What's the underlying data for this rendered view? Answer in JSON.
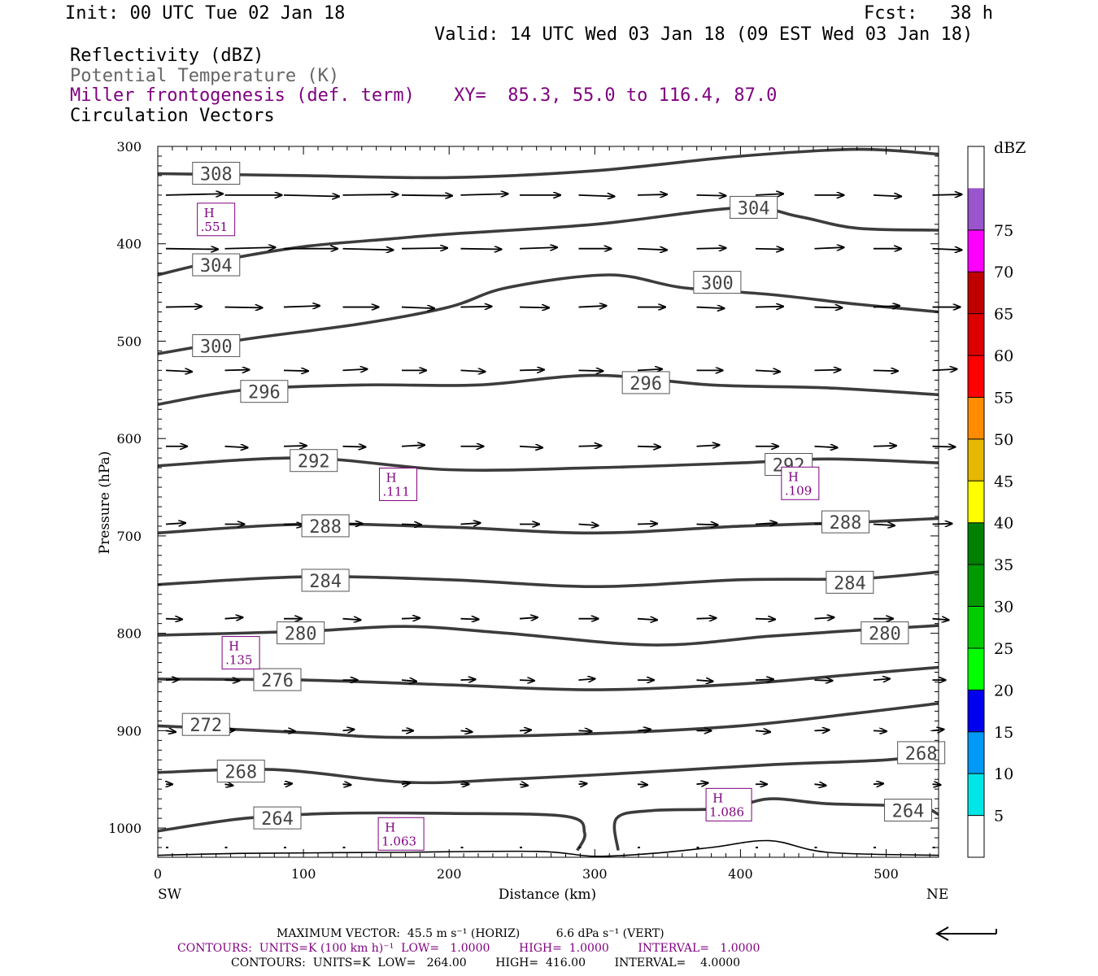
{
  "header": {
    "init": "Init: 00 UTC Tue 02 Jan 18",
    "fcst": "Fcst:   38 h",
    "valid": "Valid: 14 UTC Wed 03 Jan 18 (09 EST Wed 03 Jan 18)",
    "field1": "Reflectivity (dBZ)",
    "field2": "Potential Temperature (K)",
    "field3": "Miller frontogenesis (def. term)",
    "xy": "XY=  85.3, 55.0 to 116.4, 87.0",
    "field4": "Circulation Vectors"
  },
  "footer": {
    "line1": "MAXIMUM VECTOR:  45.5 m s⁻¹ (HORIZ)          6.6 dPa s⁻¹ (VERT)",
    "line2": "CONTOURS:  UNITS=K (100 km h)⁻¹  LOW=   1.0000        HIGH=  1.0000        INTERVAL=   1.0000",
    "line3": "CONTOURS:  UNITS=K  LOW=   264.00        HIGH=  416.00        INTERVAL=    4.0000"
  },
  "colors": {
    "purple": "#7f007f",
    "contour": "#3c3c3c"
  },
  "chart_data": {
    "type": "line",
    "xlabel": "Distance (km)",
    "ylabel": "Pressure (hPa)",
    "xlim": [
      0,
      536
    ],
    "ylim": [
      1030,
      300
    ],
    "y_scale": "linear",
    "x_ticks": [
      "0",
      "100",
      "200",
      "300",
      "400",
      "500"
    ],
    "y_ticks": [
      "300",
      "400",
      "500",
      "600",
      "700",
      "800",
      "900",
      "1000"
    ],
    "x_end_labels": {
      "left": "SW",
      "right": "NE"
    },
    "colorbar": {
      "unit": "dBZ",
      "labels": [
        "5",
        "10",
        "15",
        "20",
        "25",
        "30",
        "35",
        "40",
        "45",
        "50",
        "55",
        "60",
        "65",
        "70",
        "75"
      ],
      "colors": [
        "#ffffff",
        "#00e5e5",
        "#0099f5",
        "#0000f0",
        "#00ff00",
        "#00cc00",
        "#009900",
        "#008000",
        "#ffff00",
        "#e6b800",
        "#ff8c00",
        "#ff0000",
        "#dd0000",
        "#c00000",
        "#ff00ff",
        "#9955cc",
        "#ffffff"
      ]
    },
    "theta_contours": [
      {
        "value": 308,
        "label": "308",
        "label_x": 25,
        "label_p": 328,
        "x": [
          0,
          100,
          200,
          300,
          400,
          480,
          536
        ],
        "p": [
          328,
          330,
          332,
          325,
          310,
          303,
          308
        ]
      },
      {
        "value": 304,
        "label": "304",
        "label_x": 394,
        "label_p": 363,
        "x": [
          0,
          40,
          100,
          160,
          200,
          300,
          400,
          440,
          480,
          536
        ],
        "p": [
          432,
          418,
          403,
          395,
          390,
          380,
          363,
          372,
          384,
          386
        ]
      },
      {
        "value": 304,
        "label": "304",
        "label_x": 25,
        "label_p": 422,
        "x": [],
        "p": []
      },
      {
        "value": 300,
        "label": "300",
        "label_x": 369,
        "label_p": 440,
        "x": [
          0,
          60,
          140,
          200,
          240,
          310,
          360,
          420,
          480,
          536
        ],
        "p": [
          513,
          498,
          482,
          465,
          445,
          432,
          445,
          452,
          462,
          470
        ]
      },
      {
        "value": 300,
        "label": "300",
        "label_x": 25,
        "label_p": 505,
        "x": [],
        "p": []
      },
      {
        "value": 296,
        "label": "296",
        "label_x": 320,
        "label_p": 543,
        "x": [
          0,
          60,
          140,
          220,
          300,
          380,
          460,
          536
        ],
        "p": [
          565,
          550,
          545,
          545,
          535,
          545,
          548,
          555
        ]
      },
      {
        "value": 296,
        "label": "296",
        "label_x": 58,
        "label_p": 552,
        "x": [],
        "p": []
      },
      {
        "value": 292,
        "label": "292",
        "label_x": 92,
        "label_p": 623,
        "x": [
          0,
          100,
          200,
          300,
          400,
          460,
          536
        ],
        "p": [
          628,
          620,
          632,
          630,
          625,
          621,
          625
        ]
      },
      {
        "value": 292,
        "label": "292",
        "label_x": 418,
        "label_p": 627,
        "x": [],
        "p": []
      },
      {
        "value": 288,
        "label": "288",
        "label_x": 100,
        "label_p": 690,
        "x": [
          0,
          100,
          200,
          300,
          400,
          480,
          536
        ],
        "p": [
          697,
          688,
          691,
          697,
          690,
          686,
          682
        ]
      },
      {
        "value": 288,
        "label": "288",
        "label_x": 457,
        "label_p": 686,
        "x": [],
        "p": []
      },
      {
        "value": 284,
        "label": "284",
        "label_x": 100,
        "label_p": 746,
        "x": [
          0,
          100,
          200,
          300,
          400,
          480,
          536
        ],
        "p": [
          750,
          742,
          745,
          752,
          745,
          744,
          737
        ]
      },
      {
        "value": 284,
        "label": "284",
        "label_x": 460,
        "label_p": 748,
        "x": [],
        "p": []
      },
      {
        "value": 280,
        "label": "280",
        "label_x": 83,
        "label_p": 800,
        "x": [
          0,
          100,
          170,
          240,
          340,
          420,
          480,
          536
        ],
        "p": [
          802,
          798,
          793,
          800,
          812,
          803,
          797,
          792
        ]
      },
      {
        "value": 280,
        "label": "280",
        "label_x": 484,
        "label_p": 800,
        "x": [],
        "p": []
      },
      {
        "value": 276,
        "label": "276",
        "label_x": 67,
        "label_p": 848,
        "x": [
          0,
          100,
          200,
          300,
          400,
          480,
          536
        ],
        "p": [
          847,
          848,
          853,
          858,
          852,
          842,
          835
        ]
      },
      {
        "value": 272,
        "label": "272",
        "label_x": 18,
        "label_p": 894,
        "x": [
          0,
          100,
          170,
          300,
          400,
          480,
          536
        ],
        "p": [
          895,
          902,
          907,
          903,
          895,
          882,
          872
        ]
      },
      {
        "value": 268,
        "label": "268",
        "label_x": 42,
        "label_p": 942,
        "x": [
          0,
          80,
          170,
          240,
          330,
          420,
          500,
          536
        ],
        "p": [
          943,
          940,
          953,
          950,
          943,
          935,
          930,
          923
        ]
      },
      {
        "value": 268,
        "label": "268",
        "label_x": 509,
        "label_p": 923,
        "x": [],
        "p": []
      },
      {
        "value": 264,
        "label": "264",
        "label_x": 67,
        "label_p": 990,
        "x": [
          0,
          60,
          120,
          200,
          280,
          293,
          288
        ],
        "p": [
          1003,
          990,
          985,
          985,
          988,
          1005,
          1023
        ]
      },
      {
        "value": 264,
        "label": "264",
        "label_x": 500,
        "label_p": 982,
        "x": [
          316,
          315,
          340,
          390,
          420,
          460,
          520,
          536
        ],
        "p": [
          1023,
          990,
          982,
          980,
          970,
          975,
          978,
          986
        ]
      }
    ],
    "terrain": {
      "x": [
        0,
        60,
        160,
        260,
        300,
        340,
        380,
        420,
        460,
        536
      ],
      "p": [
        1028,
        1026,
        1025,
        1024,
        1029,
        1026,
        1020,
        1013,
        1025,
        1028
      ]
    },
    "frontogenesis_maxima": [
      {
        "label": "H",
        "value": ".551",
        "x": 40,
        "p": 375
      },
      {
        "label": "H",
        "value": ".111",
        "x": 165,
        "p": 647
      },
      {
        "label": "H",
        "value": ".109",
        "x": 441,
        "p": 646
      },
      {
        "label": "H",
        "value": ".135",
        "x": 57,
        "p": 820
      },
      {
        "label": "H",
        "value": "1.063",
        "x": 167,
        "p": 1006
      },
      {
        "label": "H",
        "value": "1.086",
        "x": 392,
        "p": 976
      }
    ],
    "vector_levels_p": [
      350,
      405,
      465,
      530,
      608,
      688,
      785,
      848,
      900,
      955,
      1020
    ],
    "vector_lengths_px": [
      [
        70,
        70,
        68,
        68,
        62,
        58,
        50,
        44,
        36,
        36,
        34,
        36,
        34,
        36
      ],
      [
        64,
        62,
        66,
        62,
        56,
        50,
        46,
        40,
        36,
        36,
        34,
        36,
        34,
        36
      ],
      [
        44,
        46,
        44,
        44,
        40,
        38,
        36,
        34,
        34,
        34,
        34,
        34,
        32,
        34
      ],
      [
        32,
        30,
        30,
        30,
        30,
        30,
        30,
        30,
        30,
        32,
        30,
        32,
        30,
        30
      ],
      [
        26,
        28,
        28,
        28,
        28,
        28,
        28,
        28,
        28,
        28,
        28,
        28,
        28,
        28
      ],
      [
        24,
        24,
        24,
        24,
        24,
        24,
        24,
        24,
        24,
        26,
        26,
        26,
        26,
        24
      ],
      [
        20,
        22,
        22,
        22,
        22,
        22,
        22,
        24,
        24,
        24,
        24,
        24,
        24,
        20
      ],
      [
        16,
        18,
        18,
        18,
        18,
        18,
        18,
        20,
        20,
        20,
        22,
        22,
        20,
        16
      ],
      [
        12,
        12,
        14,
        14,
        14,
        14,
        14,
        16,
        16,
        18,
        18,
        18,
        16,
        14
      ],
      [
        8,
        10,
        10,
        10,
        10,
        10,
        10,
        10,
        12,
        14,
        14,
        14,
        12,
        10
      ],
      [
        4,
        4,
        4,
        4,
        4,
        4,
        4,
        4,
        4,
        4,
        4,
        4,
        4,
        4
      ]
    ]
  }
}
